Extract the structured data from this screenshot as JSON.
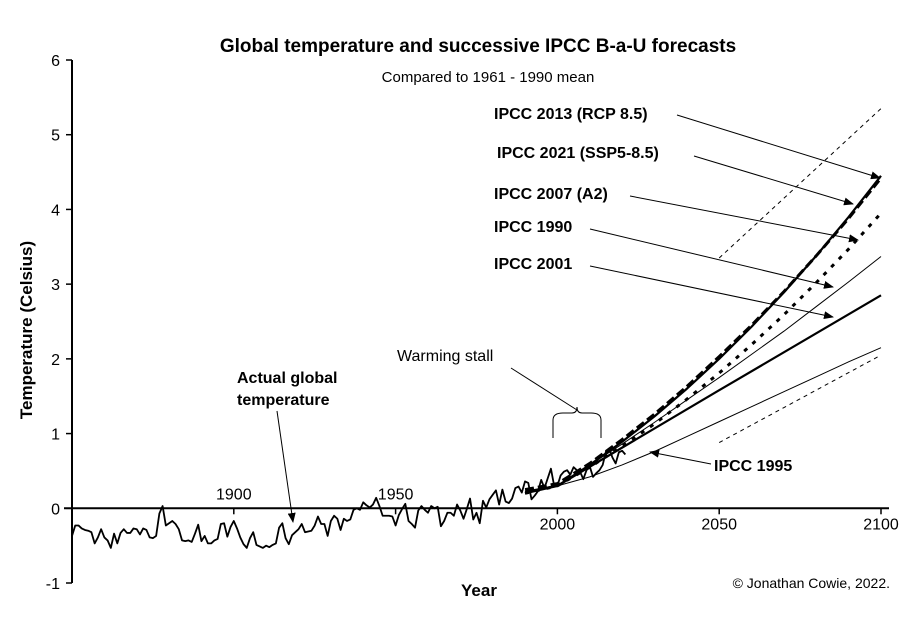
{
  "chart_data": {
    "type": "line",
    "title": "Global temperature and successive IPCC B-a-U forecasts",
    "subtitle": "Compared to 1961 - 1990 mean",
    "xlabel": "Year",
    "ylabel": "Temperature (Celsius)",
    "xlim": [
      1850,
      2100
    ],
    "ylim": [
      -1,
      6
    ],
    "yticks": [
      "-1",
      "0",
      "1",
      "2",
      "3",
      "4",
      "5",
      "6"
    ],
    "xticks": [
      "1900",
      "1950",
      "2000",
      "2050",
      "2100"
    ],
    "grid": false,
    "copyright": "© Jonathan Cowie, 2022.",
    "observed": {
      "name": "Actual global temperature",
      "label_lines": [
        "Actual global",
        "temperature"
      ],
      "start_year": 1850,
      "values": [
        -0.37,
        -0.23,
        -0.23,
        -0.27,
        -0.29,
        -0.3,
        -0.32,
        -0.47,
        -0.39,
        -0.28,
        -0.39,
        -0.43,
        -0.53,
        -0.34,
        -0.47,
        -0.33,
        -0.28,
        -0.33,
        -0.33,
        -0.27,
        -0.28,
        -0.35,
        -0.27,
        -0.29,
        -0.39,
        -0.4,
        -0.37,
        -0.07,
        0.03,
        -0.23,
        -0.2,
        -0.17,
        -0.21,
        -0.28,
        -0.43,
        -0.44,
        -0.43,
        -0.45,
        -0.34,
        -0.22,
        -0.44,
        -0.37,
        -0.47,
        -0.47,
        -0.43,
        -0.41,
        -0.21,
        -0.2,
        -0.38,
        -0.25,
        -0.17,
        -0.27,
        -0.39,
        -0.48,
        -0.53,
        -0.4,
        -0.32,
        -0.49,
        -0.51,
        -0.53,
        -0.5,
        -0.52,
        -0.49,
        -0.47,
        -0.26,
        -0.2,
        -0.4,
        -0.48,
        -0.36,
        -0.32,
        -0.28,
        -0.21,
        -0.32,
        -0.31,
        -0.3,
        -0.23,
        -0.11,
        -0.21,
        -0.21,
        -0.37,
        -0.17,
        -0.1,
        -0.14,
        -0.29,
        -0.14,
        -0.17,
        -0.15,
        -0.02,
        0.0,
        -0.02,
        0.08,
        0.04,
        0.01,
        0.05,
        0.14,
        0.03,
        -0.1,
        -0.1,
        -0.1,
        -0.11,
        -0.23,
        -0.09,
        -0.01,
        0.06,
        -0.17,
        -0.21,
        -0.26,
        -0.03,
        0.03,
        -0.02,
        -0.06,
        0.03,
        0.0,
        0.02,
        -0.24,
        -0.17,
        -0.06,
        -0.06,
        -0.1,
        0.05,
        -0.03,
        -0.14,
        -0.01,
        0.13,
        -0.15,
        -0.06,
        -0.2,
        0.1,
        0.01,
        0.12,
        0.18,
        0.24,
        0.05,
        0.25,
        0.09,
        0.07,
        0.13,
        0.27,
        0.29,
        0.21,
        0.36,
        0.34,
        0.12,
        0.17,
        0.23,
        0.38,
        0.27,
        0.4,
        0.53,
        0.3,
        0.3,
        0.44,
        0.49,
        0.51,
        0.45,
        0.55,
        0.51,
        0.49,
        0.39,
        0.51,
        0.56,
        0.42,
        0.47,
        0.51,
        0.58,
        0.76,
        0.8,
        0.68,
        0.6,
        0.75,
        0.77,
        0.72
      ]
    },
    "forecasts": [
      {
        "name": "IPCC 2013 (RCP 8.5)",
        "style": "thick-solid",
        "x": [
          1990,
          2000,
          2010,
          2020,
          2030,
          2040,
          2050,
          2060,
          2070,
          2080,
          2090,
          2100
        ],
        "y": [
          0.22,
          0.3,
          0.58,
          0.89,
          1.23,
          1.6,
          2.0,
          2.43,
          2.89,
          3.38,
          3.9,
          4.45
        ]
      },
      {
        "name": "IPCC 2021 (SSP5-8.5)",
        "style": "thick-dashed",
        "x": [
          1990,
          2000,
          2010,
          2020,
          2030,
          2040,
          2050,
          2060,
          2070,
          2080,
          2090,
          2100
        ],
        "y": [
          0.25,
          0.33,
          0.6,
          0.92,
          1.26,
          1.63,
          2.03,
          2.45,
          2.9,
          3.38,
          3.88,
          4.42
        ]
      },
      {
        "name": "IPCC 2007 (A2)",
        "style": "thick-dotted",
        "x": [
          1990,
          2000,
          2010,
          2020,
          2030,
          2040,
          2050,
          2060,
          2070,
          2080,
          2090,
          2100
        ],
        "y": [
          0.2,
          0.3,
          0.55,
          0.83,
          1.13,
          1.46,
          1.81,
          2.19,
          2.59,
          3.02,
          3.47,
          3.95
        ]
      },
      {
        "name": "IPCC 1990",
        "style": "thin-solid",
        "x": [
          1990,
          2000,
          2010,
          2020,
          2030,
          2040,
          2050,
          2060,
          2070,
          2080,
          2090,
          2100
        ],
        "y": [
          0.2,
          0.3,
          0.58,
          0.86,
          1.15,
          1.45,
          1.75,
          2.06,
          2.37,
          2.7,
          3.03,
          3.37
        ]
      },
      {
        "name": "IPCC 2001",
        "style": "thick-solid",
        "x": [
          1990,
          2000,
          2050,
          2100
        ],
        "y": [
          0.2,
          0.3,
          1.58,
          2.85
        ]
      },
      {
        "name": "IPCC 1995",
        "style": "thin-solid",
        "x": [
          1990,
          2000,
          2010,
          2020,
          2030,
          2040,
          2050,
          2060,
          2070,
          2080,
          2090,
          2100
        ],
        "y": [
          0.2,
          0.3,
          0.42,
          0.58,
          0.76,
          0.96,
          1.16,
          1.36,
          1.56,
          1.76,
          1.96,
          2.15
        ]
      }
    ],
    "range_lines": [
      {
        "style": "thin-dotted",
        "x": [
          2050,
          2100
        ],
        "y": [
          3.35,
          5.35
        ]
      },
      {
        "style": "thin-dotted",
        "x": [
          2050,
          2100
        ],
        "y": [
          0.88,
          2.05
        ]
      }
    ],
    "annotations": {
      "warming_stall": "Warming stall"
    }
  }
}
